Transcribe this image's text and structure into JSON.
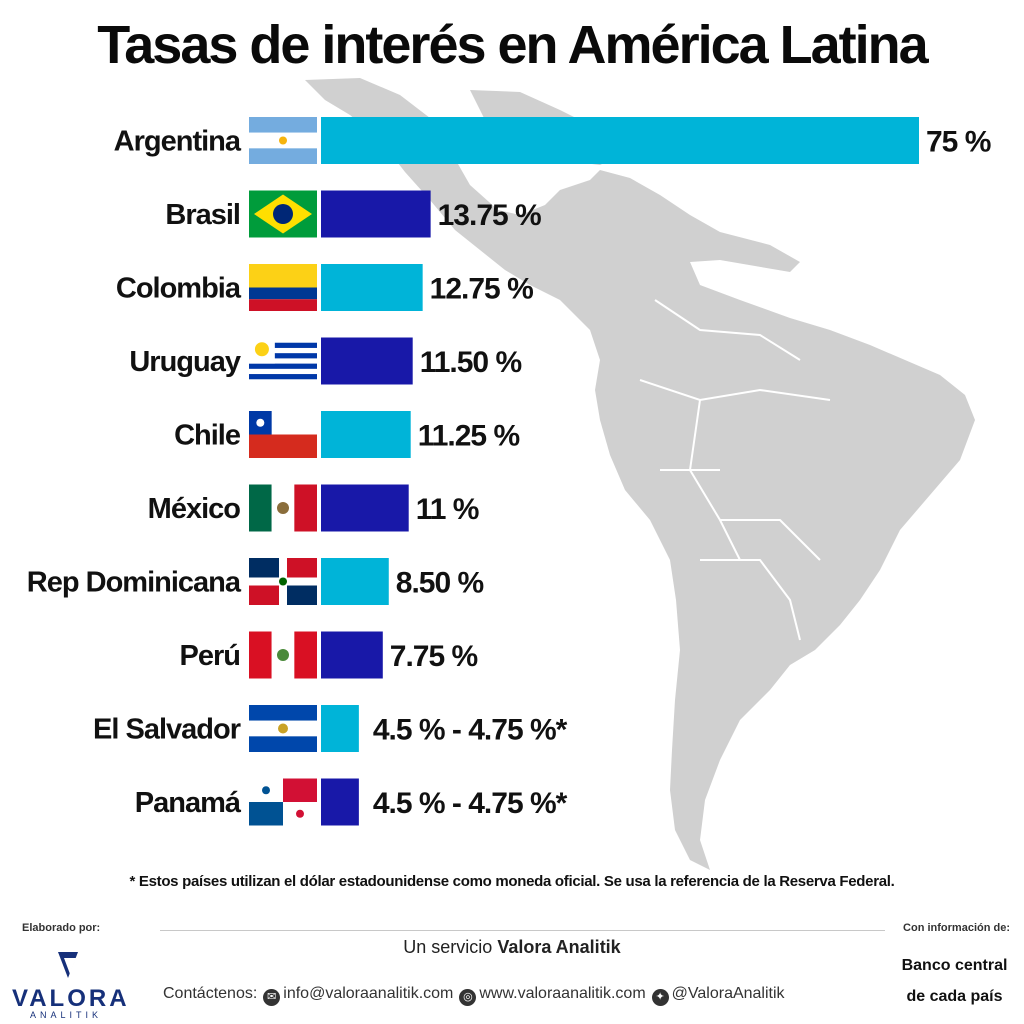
{
  "title": "Tasas de interés en América Latina",
  "chart_data": {
    "type": "bar",
    "orientation": "horizontal",
    "title": "Tasas de interés en América Latina",
    "xlim": [
      0,
      75
    ],
    "categories": [
      "Argentina",
      "Brasil",
      "Colombia",
      "Uruguay",
      "Chile",
      "México",
      "Rep Dominicana",
      "Perú",
      "El Salvador",
      "Panamá"
    ],
    "values": [
      75,
      13.75,
      12.75,
      11.5,
      11.25,
      11,
      8.5,
      7.75,
      4.75,
      4.75
    ],
    "value_labels": [
      "75 %",
      "13.75 %",
      "12.75 %",
      "11.50 %",
      "11.25 %",
      "11 %",
      "8.50 %",
      "7.75 %",
      "4.5 % - 4.75 %*",
      "4.5 % - 4.75 %*"
    ],
    "flags": [
      "argentina-flag-icon",
      "brazil-flag-icon",
      "colombia-flag-icon",
      "uruguay-flag-icon",
      "chile-flag-icon",
      "mexico-flag-icon",
      "dominican-republic-flag-icon",
      "peru-flag-icon",
      "el-salvador-flag-icon",
      "panama-flag-icon"
    ],
    "bar_colors": [
      "#00b4d8",
      "#1818a8"
    ],
    "grid": false,
    "legend": "none"
  },
  "footnote": "* Estos países utilizan el dólar estadounidense como moneda oficial. Se usa la referencia de la Reserva Federal.",
  "footer": {
    "elaborado": "Elaborado por:",
    "con_informacion": "Con información de:",
    "servicio_prefix": "Un servicio ",
    "servicio_brand": "Valora Analitik",
    "logo_word": "VALORA",
    "logo_sub": "ANALITIK",
    "contact_label": "Contáctenos:",
    "email": "info@valoraanalitik.com",
    "website": "www.valoraanalitik.com",
    "twitter": "@ValoraAnalitik",
    "source_line1": "Banco central",
    "source_line2": "de cada país"
  },
  "colors": {
    "map": "#d0d0d0",
    "map_borders": "#ffffff",
    "brand": "#16307a"
  }
}
